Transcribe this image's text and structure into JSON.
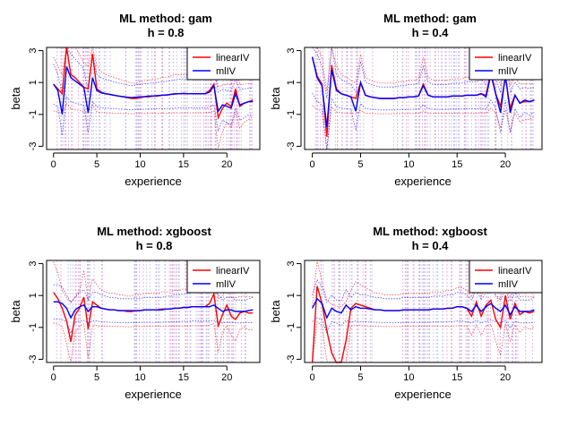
{
  "chart_data": [
    {
      "type": "line",
      "title_line1": "ML method: gam",
      "title_line2": "h = 0.8",
      "xlabel": "experience",
      "ylabel": "beta",
      "xlim": [
        -0.8,
        23.8
      ],
      "ylim": [
        -3.2,
        3.2
      ],
      "xticks": [
        0,
        5,
        10,
        15,
        20
      ],
      "yticks": [
        -3,
        -1,
        1,
        3
      ],
      "legend": [
        "linearIV",
        "mlIV"
      ],
      "legend_position": "top-right",
      "x": [
        0,
        0.5,
        1,
        1.5,
        2,
        2.5,
        3,
        3.5,
        4,
        4.5,
        5,
        5.5,
        6,
        6.5,
        7,
        7.5,
        8,
        8.5,
        9,
        9.5,
        10,
        10.5,
        11,
        11.5,
        12,
        12.5,
        13,
        13.5,
        14,
        14.5,
        15,
        15.5,
        16,
        16.5,
        17,
        17.5,
        18,
        18.5,
        19,
        19.5,
        20,
        20.5,
        21,
        21.5,
        22,
        22.5,
        23
      ],
      "series": [
        {
          "name": "linearIV",
          "color": "#ff0000",
          "values": [
            0.9,
            0.6,
            0.3,
            3.2,
            1.5,
            1.3,
            1.0,
            0.7,
            0.6,
            2.8,
            0.6,
            0.4,
            0.3,
            0.25,
            0.2,
            0.15,
            0.1,
            0.05,
            0.0,
            0.0,
            0.05,
            0.1,
            0.1,
            0.15,
            0.15,
            0.2,
            0.2,
            0.25,
            0.3,
            0.3,
            0.3,
            0.3,
            0.3,
            0.3,
            0.3,
            0.3,
            0.5,
            0.9,
            -1.2,
            -0.6,
            -0.3,
            -0.5,
            0.6,
            -0.5,
            -0.3,
            -0.2,
            -0.1
          ]
        },
        {
          "name": "mlIV",
          "color": "#0000ff",
          "values": [
            0.9,
            0.5,
            -1.0,
            2.0,
            1.3,
            1.1,
            0.9,
            0.7,
            -0.9,
            1.3,
            0.5,
            0.35,
            0.3,
            0.25,
            0.2,
            0.15,
            0.12,
            0.08,
            0.05,
            0.08,
            0.1,
            0.12,
            0.15,
            0.15,
            0.18,
            0.2,
            0.22,
            0.25,
            0.28,
            0.3,
            0.32,
            0.3,
            0.3,
            0.3,
            0.3,
            0.3,
            0.4,
            0.8,
            -0.8,
            -0.4,
            -0.5,
            -0.6,
            0.3,
            -0.4,
            -0.3,
            -0.2,
            -0.2
          ]
        }
      ]
    },
    {
      "type": "line",
      "title_line1": "ML method: gam",
      "title_line2": "h = 0.4",
      "xlabel": "experience",
      "ylabel": "beta",
      "xlim": [
        -0.8,
        23.8
      ],
      "ylim": [
        -3.2,
        3.2
      ],
      "xticks": [
        0,
        5,
        10,
        15,
        20
      ],
      "yticks": [
        -3,
        -1,
        1,
        3
      ],
      "legend": [
        "linearIV",
        "mlIV"
      ],
      "legend_position": "top-right",
      "x": [
        0,
        0.5,
        1,
        1.5,
        2,
        2.5,
        3,
        3.5,
        4,
        4.5,
        5,
        5.5,
        6,
        6.5,
        7,
        7.5,
        8,
        8.5,
        9,
        9.5,
        10,
        10.5,
        11,
        11.5,
        12,
        12.5,
        13,
        13.5,
        14,
        14.5,
        15,
        15.5,
        16,
        16.5,
        17,
        17.5,
        18,
        18.5,
        19,
        19.5,
        20,
        20.5,
        21,
        21.5,
        22,
        22.5,
        23
      ],
      "series": [
        {
          "name": "linearIV",
          "color": "#ff0000",
          "values": [
            2.6,
            1.4,
            0.9,
            -2.4,
            2.1,
            0.6,
            0.3,
            0.2,
            0.1,
            0.0,
            1.0,
            0.2,
            0.1,
            0.05,
            0.0,
            0.0,
            0.0,
            0.0,
            0.05,
            0.05,
            0.1,
            0.1,
            0.15,
            0.9,
            0.2,
            0.1,
            0.1,
            0.1,
            0.1,
            0.15,
            0.15,
            0.15,
            0.2,
            0.2,
            0.2,
            0.3,
            0.2,
            1.7,
            0.3,
            -0.5,
            1.3,
            -0.6,
            0.2,
            -0.3,
            -0.2,
            -0.2,
            -0.1
          ]
        },
        {
          "name": "mlIV",
          "color": "#0000ff",
          "values": [
            2.6,
            1.3,
            0.8,
            -1.8,
            1.8,
            0.5,
            0.3,
            0.2,
            0.1,
            -0.8,
            1.0,
            0.2,
            0.1,
            0.05,
            0.0,
            0.0,
            0.0,
            0.0,
            0.05,
            0.05,
            0.1,
            0.1,
            0.15,
            0.8,
            0.2,
            0.1,
            0.1,
            0.1,
            0.1,
            0.15,
            0.15,
            0.15,
            0.2,
            0.2,
            0.2,
            0.3,
            0.1,
            1.5,
            0.3,
            -0.9,
            1.5,
            -0.9,
            0.2,
            -0.3,
            -0.1,
            -0.2,
            -0.1
          ]
        }
      ]
    },
    {
      "type": "line",
      "title_line1": "ML method: xgboost",
      "title_line2": "h = 0.8",
      "xlabel": "experience",
      "ylabel": "beta",
      "xlim": [
        -0.8,
        23.8
      ],
      "ylim": [
        -3.2,
        3.2
      ],
      "xticks": [
        0,
        5,
        10,
        15,
        20
      ],
      "yticks": [
        -3,
        -1,
        1,
        3
      ],
      "legend": [
        "linearIV",
        "mlIV"
      ],
      "legend_position": "top-right",
      "x": [
        0,
        0.5,
        1,
        1.5,
        2,
        2.5,
        3,
        3.5,
        4,
        4.5,
        5,
        5.5,
        6,
        6.5,
        7,
        7.5,
        8,
        8.5,
        9,
        9.5,
        10,
        10.5,
        11,
        11.5,
        12,
        12.5,
        13,
        13.5,
        14,
        14.5,
        15,
        15.5,
        16,
        16.5,
        17,
        17.5,
        18,
        18.5,
        19,
        19.5,
        20,
        20.5,
        21,
        21.5,
        22,
        22.5,
        23
      ],
      "series": [
        {
          "name": "linearIV",
          "color": "#ff0000",
          "values": [
            1.2,
            0.8,
            0.2,
            -0.6,
            -1.9,
            -0.2,
            0.2,
            0.9,
            -1.1,
            0.6,
            0.4,
            0.2,
            0.15,
            0.1,
            0.1,
            0.05,
            0.05,
            0.0,
            0.0,
            0.05,
            0.05,
            0.1,
            0.1,
            0.1,
            0.1,
            0.15,
            0.15,
            0.15,
            0.2,
            0.2,
            0.25,
            0.25,
            0.3,
            0.3,
            0.3,
            0.3,
            0.5,
            1.1,
            -0.9,
            -0.2,
            0.4,
            -0.3,
            -0.5,
            -0.1,
            0.0,
            -0.1,
            -0.1
          ]
        },
        {
          "name": "mlIV",
          "color": "#0000ff",
          "values": [
            0.6,
            0.6,
            0.5,
            0.2,
            -0.4,
            0.1,
            0.3,
            0.4,
            0.0,
            0.3,
            0.3,
            0.2,
            0.15,
            0.1,
            0.1,
            0.05,
            0.05,
            0.05,
            0.05,
            0.05,
            0.05,
            0.1,
            0.1,
            0.1,
            0.1,
            0.1,
            0.15,
            0.15,
            0.2,
            0.2,
            0.25,
            0.25,
            0.3,
            0.3,
            0.3,
            0.3,
            0.3,
            0.4,
            0.2,
            0.0,
            0.1,
            0.1,
            0.0,
            0.0,
            0.0,
            0.05,
            0.1
          ]
        }
      ]
    },
    {
      "type": "line",
      "title_line1": "ML method: xgboost",
      "title_line2": "h = 0.4",
      "xlabel": "experience",
      "ylabel": "beta",
      "xlim": [
        -0.8,
        23.8
      ],
      "ylim": [
        -3.2,
        3.2
      ],
      "xticks": [
        0,
        5,
        10,
        15,
        20
      ],
      "yticks": [
        -3,
        -1,
        1,
        3
      ],
      "legend": [
        "linearIV",
        "mlIV"
      ],
      "legend_position": "top-right",
      "x": [
        0,
        0.5,
        1,
        1.5,
        2,
        2.5,
        3,
        3.5,
        4,
        4.5,
        5,
        5.5,
        6,
        6.5,
        7,
        7.5,
        8,
        8.5,
        9,
        9.5,
        10,
        10.5,
        11,
        11.5,
        12,
        12.5,
        13,
        13.5,
        14,
        14.5,
        15,
        15.5,
        16,
        16.5,
        17,
        17.5,
        18,
        18.5,
        19,
        19.5,
        20,
        20.5,
        21,
        21.5,
        22,
        22.5,
        23
      ],
      "series": [
        {
          "name": "linearIV",
          "color": "#ff0000",
          "values": [
            -3.2,
            1.6,
            0.5,
            -1.2,
            -2.6,
            -3.2,
            -3.2,
            -1.8,
            0.2,
            0.5,
            0.4,
            0.3,
            0.2,
            0.1,
            0.1,
            0.05,
            0.05,
            0.05,
            0.05,
            0.1,
            0.1,
            0.1,
            0.1,
            0.1,
            0.1,
            0.15,
            0.15,
            0.15,
            0.2,
            0.2,
            0.3,
            0.3,
            0.2,
            -0.3,
            0.6,
            -0.3,
            0.4,
            0.7,
            -0.5,
            -1.0,
            1.0,
            -0.5,
            0.5,
            -0.2,
            0.0,
            -0.1,
            0.0
          ]
        },
        {
          "name": "mlIV",
          "color": "#0000ff",
          "values": [
            0.2,
            0.8,
            0.5,
            -0.4,
            0.2,
            0.0,
            -0.1,
            0.4,
            0.1,
            0.3,
            0.2,
            0.2,
            0.15,
            0.1,
            0.1,
            0.05,
            0.05,
            0.05,
            0.05,
            0.1,
            0.1,
            0.1,
            0.1,
            0.1,
            0.1,
            0.15,
            0.15,
            0.15,
            0.2,
            0.2,
            0.3,
            0.3,
            0.2,
            0.0,
            0.4,
            0.0,
            0.3,
            0.5,
            0.2,
            0.0,
            0.4,
            -0.2,
            0.3,
            0.0,
            0.0,
            0.0,
            0.1
          ]
        }
      ]
    }
  ]
}
